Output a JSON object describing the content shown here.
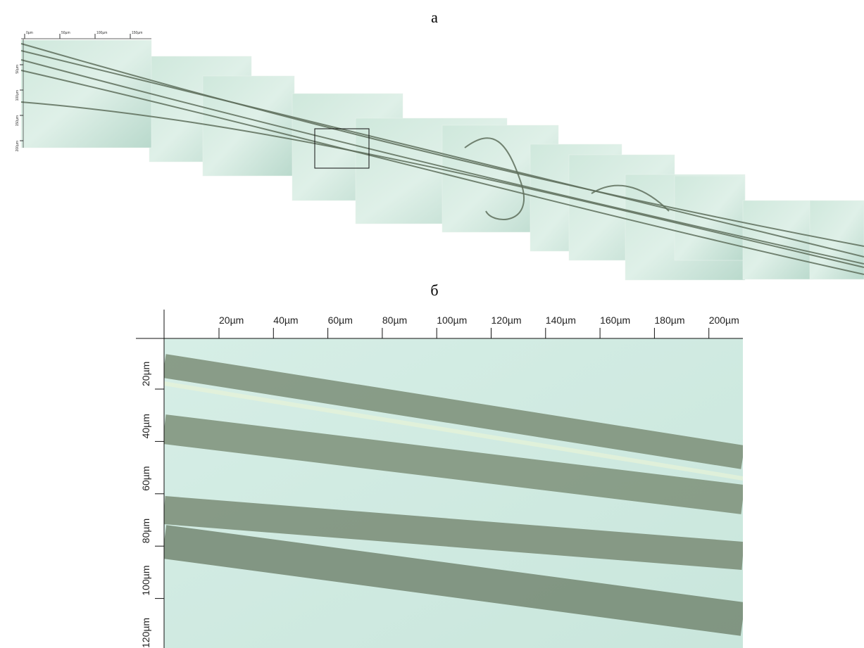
{
  "panel_a": {
    "label": "а",
    "top_scale": [
      "0µm",
      "50µm",
      "100µm",
      "150µm"
    ],
    "left_scale": [
      "50µm",
      "100µm",
      "150µm",
      "200µm"
    ]
  },
  "panel_b": {
    "label": "б",
    "top_scale": [
      "20µm",
      "40µm",
      "60µm",
      "80µm",
      "100µm",
      "120µm",
      "140µm",
      "160µm",
      "180µm",
      "200µm"
    ],
    "left_scale": [
      "20µm",
      "40µm",
      "60µm",
      "80µm",
      "100µm",
      "120µm"
    ]
  }
}
